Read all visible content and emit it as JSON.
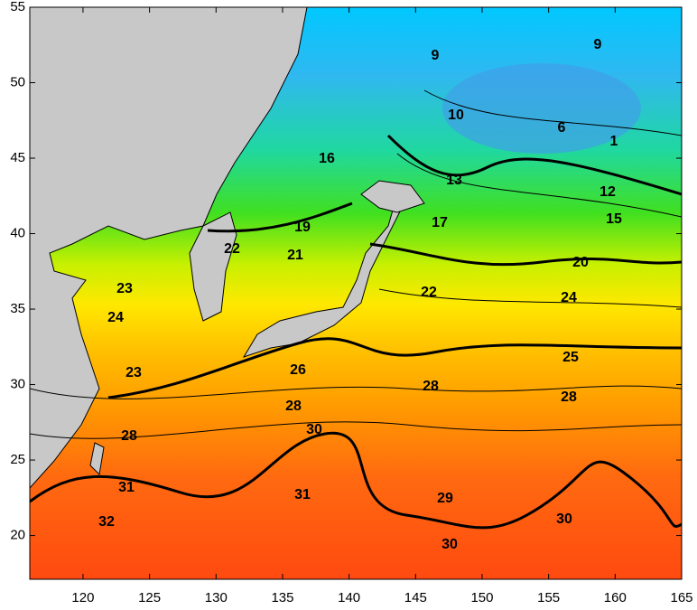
{
  "map": {
    "xlim": [
      116,
      165
    ],
    "ylim": [
      17.1,
      55
    ],
    "xticks": [
      120,
      125,
      130,
      135,
      140,
      145,
      150,
      155,
      160,
      165
    ],
    "yticks": [
      20,
      25,
      30,
      35,
      40,
      45,
      50,
      55
    ],
    "contour_labels": [
      9,
      9,
      10,
      6,
      1,
      16,
      13,
      12,
      19,
      15,
      17,
      22,
      21,
      20,
      23,
      22,
      24,
      24,
      25,
      26,
      23,
      28,
      28,
      28,
      30,
      28,
      31,
      31,
      29,
      30,
      32,
      30
    ]
  }
}
